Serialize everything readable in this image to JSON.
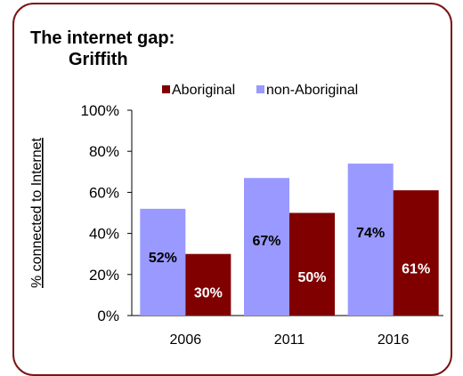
{
  "chart_data": {
    "type": "bar",
    "title": "The internet gap:",
    "subtitle": "Griffith",
    "ylabel": "% connected to Internet",
    "xlabel": "",
    "categories": [
      "2006",
      "2011",
      "2016"
    ],
    "series": [
      {
        "name": "non-Aboriginal",
        "color": "#9999ff",
        "values": [
          52,
          67,
          74
        ],
        "labels": [
          "52%",
          "67%",
          "74%"
        ]
      },
      {
        "name": "Aboriginal",
        "color": "#800000",
        "values": [
          30,
          50,
          61
        ],
        "labels": [
          "30%",
          "50%",
          "61%"
        ]
      }
    ],
    "legend_order": [
      "Aboriginal",
      "non-Aboriginal"
    ],
    "legend_position": "top",
    "ylim": [
      0,
      100
    ],
    "yticks": [
      "0%",
      "20%",
      "40%",
      "60%",
      "80%",
      "100%"
    ],
    "grid": false
  },
  "colors": {
    "frame": "#7a1616"
  }
}
